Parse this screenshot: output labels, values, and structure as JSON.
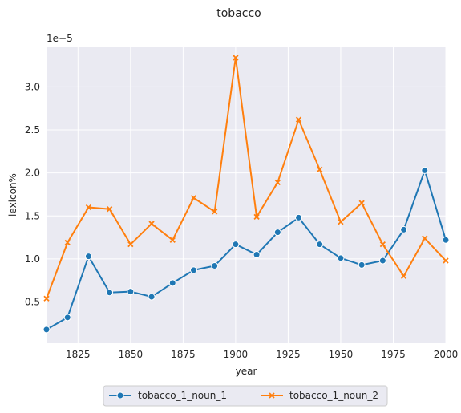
{
  "chart_data": {
    "type": "line",
    "title": "tobacco",
    "xlabel": "year",
    "ylabel": "lexicon%",
    "y_offset_label": "1e−5",
    "x_ticks": [
      "1825",
      "1850",
      "1875",
      "1900",
      "1925",
      "1950",
      "1975",
      "2000"
    ],
    "y_ticks": [
      "0.5",
      "1.0",
      "1.5",
      "2.0",
      "2.5",
      "3.0"
    ],
    "xlim": [
      1810,
      2000
    ],
    "ylim": [
      0.02,
      3.47
    ],
    "grid": true,
    "legend_position": "bottom-center",
    "x": [
      1810,
      1820,
      1830,
      1840,
      1850,
      1860,
      1870,
      1880,
      1890,
      1900,
      1910,
      1920,
      1930,
      1940,
      1950,
      1960,
      1970,
      1980,
      1990,
      2000
    ],
    "series": [
      {
        "name": "tobacco_1_noun_1",
        "color": "#1f77b4",
        "marker": "circle",
        "values": [
          0.18,
          0.32,
          1.03,
          0.61,
          0.62,
          0.56,
          0.72,
          0.87,
          0.92,
          1.17,
          1.05,
          1.31,
          1.48,
          1.17,
          1.01,
          0.93,
          0.98,
          1.34,
          2.03,
          1.22
        ]
      },
      {
        "name": "tobacco_1_noun_2",
        "color": "#ff7f0e",
        "marker": "x",
        "values": [
          0.54,
          1.19,
          1.6,
          1.58,
          1.17,
          1.41,
          1.22,
          1.71,
          1.55,
          3.34,
          1.49,
          1.89,
          2.62,
          2.04,
          1.43,
          1.65,
          1.17,
          0.8,
          1.24,
          0.98
        ]
      }
    ]
  }
}
